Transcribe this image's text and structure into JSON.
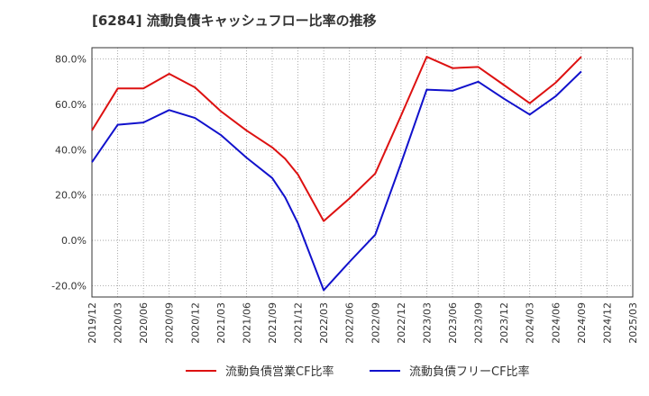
{
  "chart_data": {
    "type": "line",
    "title": "[6284]  流動負債キャッシュフロー比率の推移",
    "xlabel": "",
    "ylabel": "",
    "ylim": [
      -25,
      85
    ],
    "yticks": [
      80,
      60,
      40,
      20,
      0,
      -20
    ],
    "ytick_labels": [
      "80.0%",
      "60.0%",
      "40.0%",
      "20.0%",
      "0.0%",
      "-20.0%"
    ],
    "x_tick_labels": [
      "2019/12",
      "2020/03",
      "2020/06",
      "2020/09",
      "2020/12",
      "2021/03",
      "2021/06",
      "2021/09",
      "2021/12",
      "2022/03",
      "2022/06",
      "2022/09",
      "2022/12",
      "2023/03",
      "2023/06",
      "2023/09",
      "2023/12",
      "2024/03",
      "2024/06",
      "2024/09",
      "2024/12",
      "2025/03"
    ],
    "grid": true,
    "legend_position": "bottom",
    "series": [
      {
        "name": "流動負債営業CF比率",
        "color": "#dd1111",
        "points": [
          {
            "x": 0,
            "y": 48.5
          },
          {
            "x": 1,
            "y": 67.0
          },
          {
            "x": 2,
            "y": 67.0
          },
          {
            "x": 3,
            "y": 73.5
          },
          {
            "x": 4,
            "y": 67.5
          },
          {
            "x": 5,
            "y": 57.0
          },
          {
            "x": 6,
            "y": 48.5
          },
          {
            "x": 7,
            "y": 41.0
          },
          {
            "x": 7.5,
            "y": 36.0
          },
          {
            "x": 8,
            "y": 29.0
          },
          {
            "x": 9,
            "y": 8.5
          },
          {
            "x": 10,
            "y": 18.5
          },
          {
            "x": 11,
            "y": 29.5
          },
          {
            "x": 12,
            "y": 55.0
          },
          {
            "x": 13,
            "y": 81.0
          },
          {
            "x": 14,
            "y": 76.0
          },
          {
            "x": 15,
            "y": 76.5
          },
          {
            "x": 16,
            "y": 68.5
          },
          {
            "x": 17,
            "y": 60.5
          },
          {
            "x": 18,
            "y": 69.5
          },
          {
            "x": 19,
            "y": 81.0
          }
        ]
      },
      {
        "name": "流動負債フリーCF比率",
        "color": "#1111cc",
        "points": [
          {
            "x": 0,
            "y": 34.5
          },
          {
            "x": 1,
            "y": 51.0
          },
          {
            "x": 2,
            "y": 52.0
          },
          {
            "x": 3,
            "y": 57.5
          },
          {
            "x": 4,
            "y": 54.0
          },
          {
            "x": 5,
            "y": 46.5
          },
          {
            "x": 6,
            "y": 36.5
          },
          {
            "x": 7,
            "y": 27.5
          },
          {
            "x": 7.5,
            "y": 19.0
          },
          {
            "x": 8,
            "y": 7.5
          },
          {
            "x": 9,
            "y": -22.0
          },
          {
            "x": 10,
            "y": -9.5
          },
          {
            "x": 11,
            "y": 2.5
          },
          {
            "x": 12,
            "y": 34.0
          },
          {
            "x": 13,
            "y": 66.5
          },
          {
            "x": 14,
            "y": 66.0
          },
          {
            "x": 15,
            "y": 70.0
          },
          {
            "x": 16,
            "y": 62.5
          },
          {
            "x": 17,
            "y": 55.5
          },
          {
            "x": 18,
            "y": 63.5
          },
          {
            "x": 19,
            "y": 74.5
          }
        ]
      }
    ]
  },
  "colors": {
    "grid": "#999999",
    "axis": "#333333",
    "text": "#333333",
    "background": "#ffffff"
  }
}
